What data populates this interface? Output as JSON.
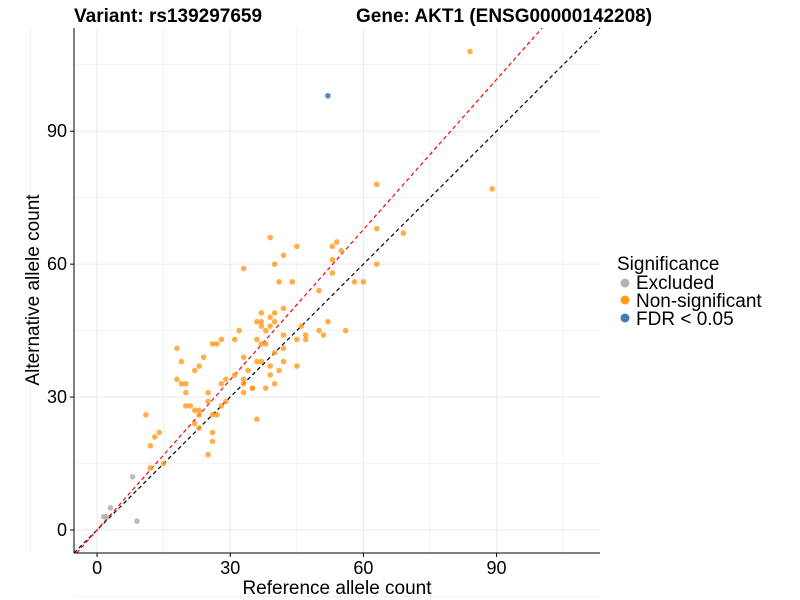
{
  "chart_data": {
    "type": "scatter",
    "title_left": "Variant: rs139297659",
    "title_right": "Gene: AKT1 (ENSG00000142208)",
    "xlabel": "Reference allele count",
    "ylabel": "Alternative allele count",
    "xlim": [
      -5.2,
      113.3
    ],
    "ylim": [
      -5.2,
      113.3
    ],
    "xticks": [
      "0",
      "30",
      "60",
      "90"
    ],
    "yticks": [
      "0",
      "30",
      "60",
      "90"
    ],
    "xtick_values": [
      0,
      30,
      60,
      90
    ],
    "ytick_values": [
      0,
      30,
      60,
      90
    ],
    "grid": true,
    "legend": {
      "title": "Significance",
      "placement": "right",
      "entries": [
        {
          "label": "Excluded",
          "color": "#b3b3b3"
        },
        {
          "label": "Non-significant",
          "color": "#ff9a1a"
        },
        {
          "label": "FDR < 0.05",
          "color": "#4a7bb0"
        }
      ]
    },
    "reference_lines": [
      {
        "name": "identity",
        "slope": 1.0,
        "intercept": 0,
        "color": "#000000",
        "style": "dashed"
      },
      {
        "name": "fit",
        "slope": 1.13,
        "intercept": 0,
        "color": "#ff0000",
        "style": "dashed"
      }
    ],
    "series": [
      {
        "name": "Excluded",
        "color": "#b3b3b3",
        "points": [
          [
            1.5,
            3
          ],
          [
            2,
            3
          ],
          [
            3,
            5
          ],
          [
            8,
            12
          ],
          [
            9,
            2
          ]
        ]
      },
      {
        "name": "FDR < 0.05",
        "color": "#4a7bb0",
        "points": [
          [
            52,
            98
          ]
        ]
      },
      {
        "name": "Non-significant",
        "color": "#ff9a1a",
        "points": [
          [
            11,
            26
          ],
          [
            12,
            19
          ],
          [
            13,
            21
          ],
          [
            14,
            22
          ],
          [
            12,
            14
          ],
          [
            15,
            15
          ],
          [
            18,
            41
          ],
          [
            19,
            38
          ],
          [
            18,
            34
          ],
          [
            19,
            33
          ],
          [
            20,
            33
          ],
          [
            20,
            31
          ],
          [
            20,
            28
          ],
          [
            21,
            28
          ],
          [
            22,
            27
          ],
          [
            23,
            27
          ],
          [
            23,
            26
          ],
          [
            22,
            24
          ],
          [
            23,
            23
          ],
          [
            25,
            31
          ],
          [
            25,
            29
          ],
          [
            26,
            26
          ],
          [
            27,
            26
          ],
          [
            26,
            22
          ],
          [
            26,
            20
          ],
          [
            25,
            17
          ],
          [
            28,
            28
          ],
          [
            29,
            29
          ],
          [
            28,
            33
          ],
          [
            29,
            34
          ],
          [
            31,
            35
          ],
          [
            33,
            34
          ],
          [
            33,
            33
          ],
          [
            33,
            31
          ],
          [
            35,
            32
          ],
          [
            36,
            25
          ],
          [
            34,
            36
          ],
          [
            36,
            38
          ],
          [
            33,
            39
          ],
          [
            23,
            37
          ],
          [
            22,
            36
          ],
          [
            24,
            39
          ],
          [
            26,
            42
          ],
          [
            27,
            42
          ],
          [
            28,
            43
          ],
          [
            31,
            43
          ],
          [
            32,
            45
          ],
          [
            36,
            43
          ],
          [
            36,
            47
          ],
          [
            39,
            66
          ],
          [
            45,
            64
          ],
          [
            42,
            62
          ],
          [
            40,
            60
          ],
          [
            33,
            59
          ],
          [
            53,
            64
          ],
          [
            54,
            65
          ],
          [
            55,
            63
          ],
          [
            53,
            61
          ],
          [
            53,
            58
          ],
          [
            63,
            60
          ],
          [
            58,
            56
          ],
          [
            60,
            56
          ],
          [
            41,
            56
          ],
          [
            44,
            56
          ],
          [
            50,
            54
          ],
          [
            37,
            49
          ],
          [
            40,
            49
          ],
          [
            39,
            48
          ],
          [
            37,
            47
          ],
          [
            40,
            47
          ],
          [
            37,
            46
          ],
          [
            39,
            46
          ],
          [
            42,
            50
          ],
          [
            38,
            45
          ],
          [
            46,
            46
          ],
          [
            52,
            47
          ],
          [
            50,
            45
          ],
          [
            56,
            45
          ],
          [
            51,
            44
          ],
          [
            47,
            44
          ],
          [
            47,
            43
          ],
          [
            45,
            43
          ],
          [
            42,
            44
          ],
          [
            42,
            41
          ],
          [
            37,
            42
          ],
          [
            38,
            42
          ],
          [
            40,
            40
          ],
          [
            37,
            38
          ],
          [
            42,
            38
          ],
          [
            39,
            37
          ],
          [
            45,
            37
          ],
          [
            41,
            36
          ],
          [
            39,
            35
          ],
          [
            40,
            33
          ],
          [
            38,
            32
          ],
          [
            35,
            32
          ],
          [
            63,
            68
          ],
          [
            69,
            67
          ],
          [
            63,
            78
          ],
          [
            84,
            108
          ],
          [
            89,
            77
          ]
        ]
      }
    ]
  }
}
